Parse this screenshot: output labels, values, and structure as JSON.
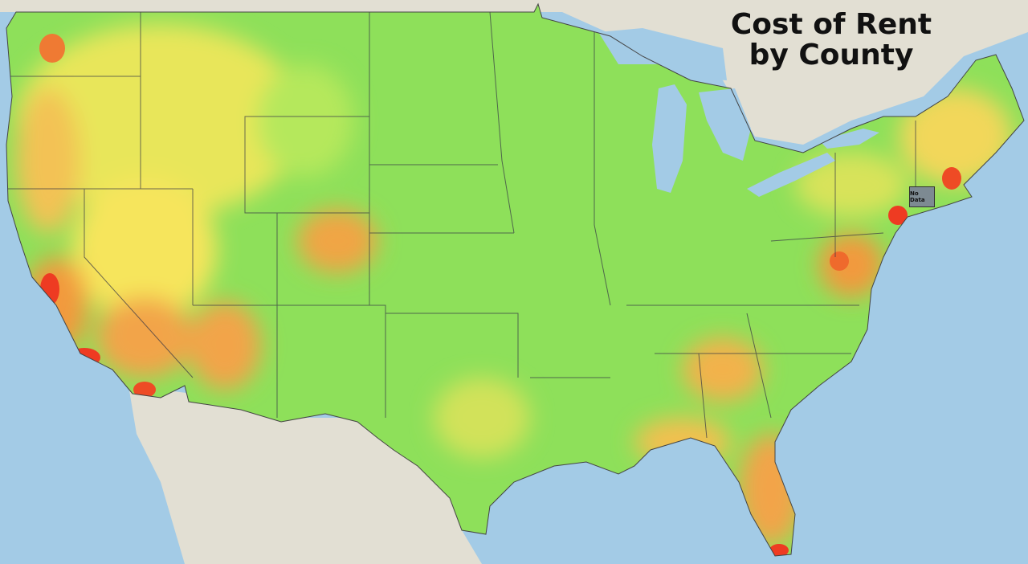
{
  "title_lines": [
    "Cost of Rent",
    "by County"
  ],
  "labels": {
    "no_data": "No Data"
  }
}
